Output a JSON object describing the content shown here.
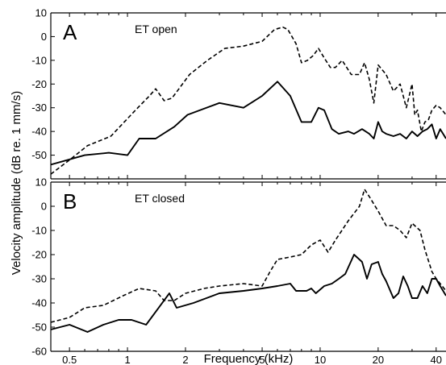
{
  "chart_data": [
    {
      "type": "line",
      "panel_letter": "A",
      "condition": "ET open",
      "x_scale": "log",
      "xlim": [
        0.4,
        45
      ],
      "ylim": [
        -60,
        10
      ],
      "yticks": [
        10,
        0,
        -10,
        -20,
        -30,
        -40,
        -50
      ],
      "grid": false,
      "series": [
        {
          "style": "dashed",
          "x": [
            0.4,
            0.5,
            0.62,
            0.82,
            1.1,
            1.3,
            1.4,
            1.55,
            1.7,
            1.85,
            2.1,
            2.6,
            3.2,
            4.0,
            5.0,
            5.8,
            6.4,
            6.8,
            7.5,
            8.0,
            8.6,
            9.2,
            9.8,
            10.5,
            11.3,
            12.0,
            13.0,
            14.5,
            16.0,
            17.0,
            18.0,
            19.0,
            20.0,
            21.0,
            22.0,
            24.0,
            26.0,
            28.0,
            30.0,
            31.0,
            32.0,
            33.5,
            35.0,
            36.5,
            38.0,
            40.0,
            42.0,
            45.0
          ],
          "y": [
            -58,
            -52,
            -46,
            -42,
            -31,
            -25,
            -22,
            -27,
            -26,
            -22,
            -16,
            -10,
            -5,
            -4,
            -2,
            3,
            4,
            3,
            -3,
            -11,
            -10,
            -8,
            -5,
            -9,
            -13,
            -13,
            -10,
            -16,
            -16,
            -11,
            -18,
            -28,
            -12,
            -14,
            -16,
            -23,
            -20,
            -30,
            -20,
            -33,
            -31,
            -40,
            -36,
            -35,
            -31,
            -29,
            -30,
            -33
          ]
        },
        {
          "style": "solid",
          "x": [
            0.4,
            0.6,
            0.8,
            1.0,
            1.15,
            1.4,
            1.75,
            2.05,
            3.0,
            4.0,
            5.0,
            6.0,
            7.0,
            8.0,
            9.0,
            9.8,
            10.5,
            11.5,
            12.5,
            14.0,
            15.0,
            16.5,
            18.0,
            19.0,
            20.0,
            21.0,
            22.0,
            24.0,
            26.0,
            28.0,
            30.0,
            32.0,
            34.0,
            36.0,
            38.0,
            40.0,
            42.0,
            45.0
          ],
          "y": [
            -54,
            -50,
            -49,
            -50,
            -43,
            -43,
            -38,
            -33,
            -28,
            -30,
            -25,
            -19,
            -25,
            -36,
            -36,
            -30,
            -31,
            -39,
            -41,
            -40,
            -41,
            -39,
            -41,
            -43,
            -36,
            -40,
            -41,
            -42,
            -41,
            -43,
            -40,
            -42,
            -40,
            -39,
            -37,
            -43,
            -39,
            -43
          ]
        }
      ]
    },
    {
      "type": "line",
      "panel_letter": "B",
      "condition": "ET closed",
      "x_scale": "log",
      "xlim": [
        0.4,
        45
      ],
      "ylim": [
        -60,
        10
      ],
      "yticks": [
        10,
        0,
        -10,
        -20,
        -30,
        -40,
        -50,
        -60
      ],
      "xticks": [
        0.5,
        1,
        2,
        5,
        10,
        20,
        40
      ],
      "xlabel": "Frequency (kHz)",
      "grid": false,
      "series": [
        {
          "style": "dashed",
          "x": [
            0.4,
            0.5,
            0.6,
            0.75,
            0.95,
            1.15,
            1.4,
            1.55,
            1.75,
            2.0,
            2.5,
            3.0,
            4.0,
            5.0,
            5.5,
            6.0,
            7.0,
            8.0,
            9.0,
            10.0,
            11.0,
            12.0,
            14.0,
            16.0,
            17.0,
            18.0,
            20.0,
            22.0,
            24.0,
            26.0,
            28.0,
            30.0,
            33.0,
            35.0,
            38.0,
            40.0,
            42.0,
            45.0
          ],
          "y": [
            -48,
            -46,
            -42,
            -41,
            -37,
            -34,
            -35,
            -39,
            -39,
            -36,
            -34,
            -33,
            -32,
            -33,
            -27,
            -22,
            -21,
            -20,
            -16,
            -14,
            -19,
            -14,
            -6,
            0,
            7,
            4,
            -2,
            -8,
            -8,
            -10,
            -13,
            -7,
            -10,
            -18,
            -27,
            -30,
            -32,
            -35
          ]
        },
        {
          "style": "solid",
          "x": [
            0.4,
            0.5,
            0.62,
            0.75,
            0.9,
            1.05,
            1.25,
            1.65,
            1.8,
            2.2,
            3.0,
            4.0,
            5.0,
            6.0,
            7.0,
            7.5,
            8.5,
            9.0,
            9.5,
            10.5,
            11.5,
            12.5,
            13.5,
            15.0,
            16.5,
            17.5,
            18.5,
            20.0,
            21.0,
            22.0,
            24.0,
            25.5,
            27.0,
            28.5,
            30.0,
            32.0,
            34.0,
            36.0,
            38.0,
            40.0,
            42.0,
            45.0
          ],
          "y": [
            -51,
            -49,
            -52,
            -49,
            -47,
            -47,
            -49,
            -36,
            -42,
            -40,
            -36,
            -35,
            -34,
            -33,
            -32,
            -35,
            -35,
            -34,
            -36,
            -33,
            -32,
            -30,
            -28,
            -20,
            -23,
            -30,
            -24,
            -23,
            -28,
            -31,
            -38,
            -36,
            -29,
            -33,
            -38,
            -38,
            -33,
            -36,
            -30,
            -30,
            -33,
            -37
          ]
        }
      ]
    }
  ],
  "ylabel": "Velocity amplitude (dB re. 1 mm/s)"
}
